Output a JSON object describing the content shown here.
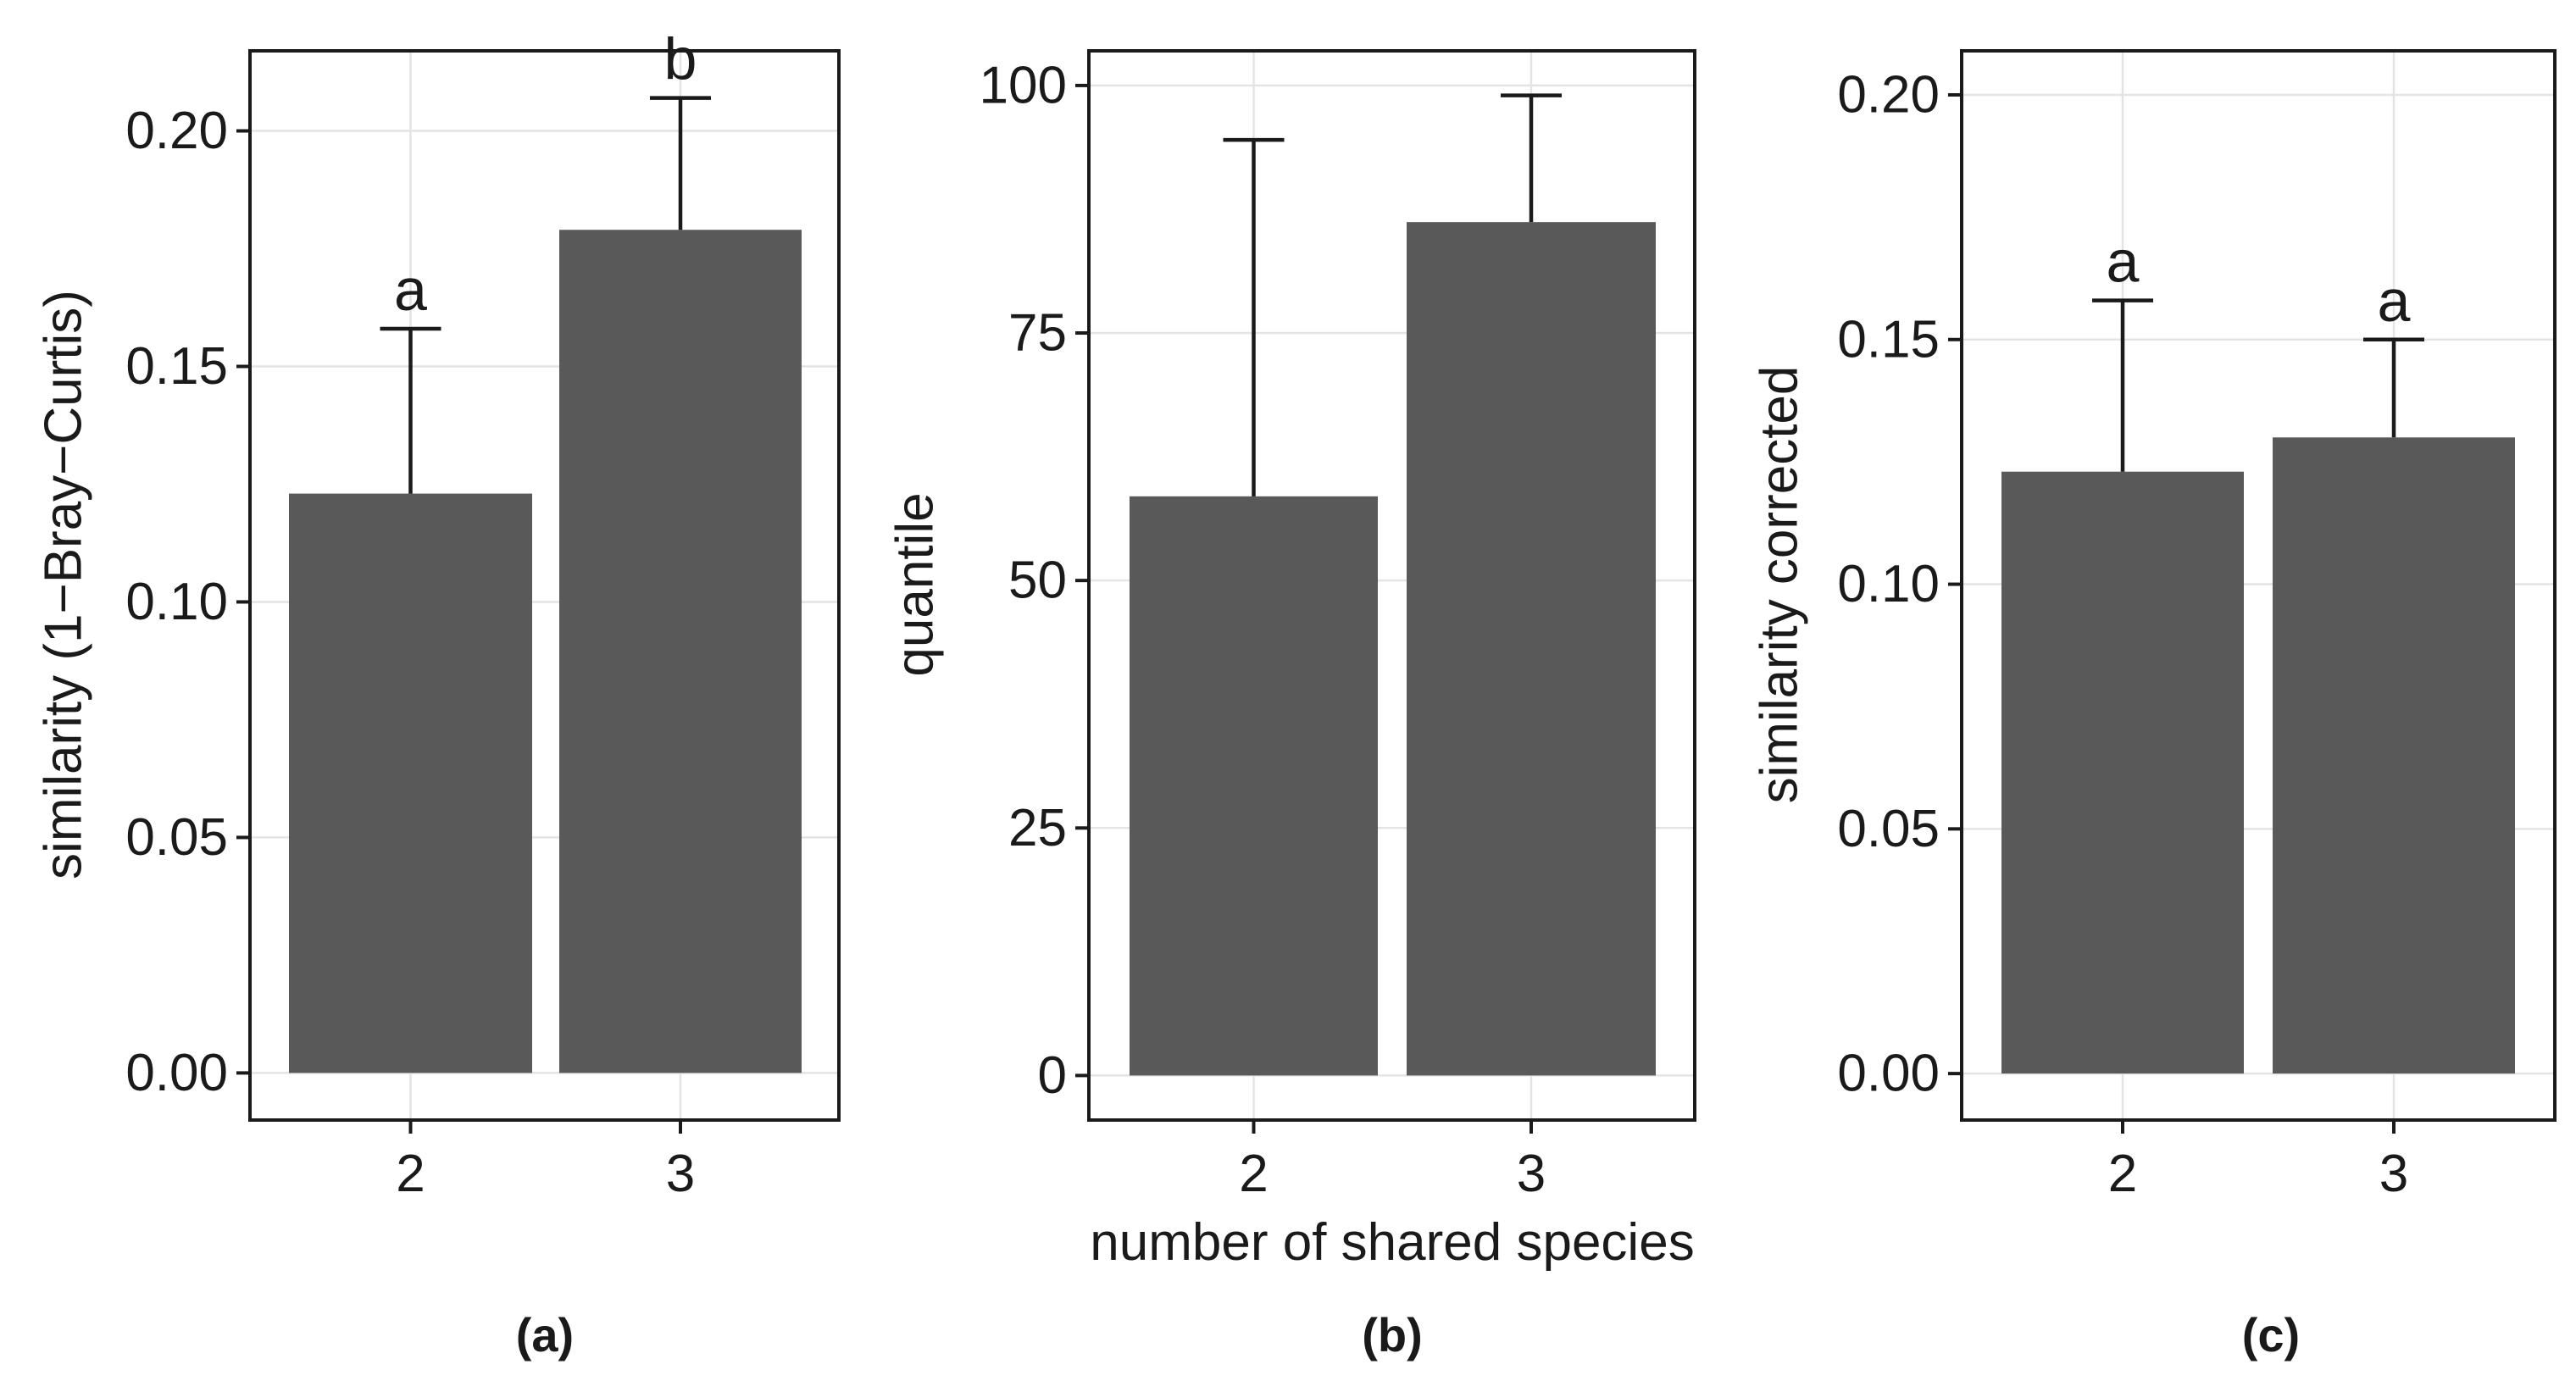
{
  "figure": {
    "shared_xlabel": "number of shared species"
  },
  "chart_data": [
    {
      "type": "bar",
      "panel_label": "(a)",
      "categories": [
        "2",
        "3"
      ],
      "values": [
        0.123,
        0.179
      ],
      "error_upper": [
        0.158,
        0.207
      ],
      "significance_letters": [
        "a",
        "b"
      ],
      "ylabel": "similarity (1−Bray−Curtis)",
      "xlabel": "",
      "ylim": [
        -0.01,
        0.217
      ],
      "yticks": [
        0.0,
        0.05,
        0.1,
        0.15,
        0.2
      ],
      "ytick_labels": [
        "0.00",
        "0.05",
        "0.10",
        "0.15",
        "0.20"
      ],
      "grid": true,
      "bar_color": "#595959"
    },
    {
      "type": "bar",
      "panel_label": "(b)",
      "categories": [
        "2",
        "3"
      ],
      "values": [
        58.5,
        86.2
      ],
      "error_upper": [
        94.5,
        99.0
      ],
      "significance_letters": [],
      "ylabel": "quantile",
      "xlabel": "number of shared species",
      "ylim": [
        -4.5,
        103.5
      ],
      "yticks": [
        0,
        25,
        50,
        75,
        100
      ],
      "ytick_labels": [
        "0",
        "25",
        "50",
        "75",
        "100"
      ],
      "grid": true,
      "bar_color": "#595959"
    },
    {
      "type": "bar",
      "panel_label": "(c)",
      "categories": [
        "2",
        "3"
      ],
      "values": [
        0.123,
        0.13
      ],
      "error_upper": [
        0.158,
        0.15
      ],
      "significance_letters": [
        "a",
        "a"
      ],
      "ylabel": "similarity corrected",
      "xlabel": "",
      "ylim": [
        -0.0095,
        0.209
      ],
      "yticks": [
        0.0,
        0.05,
        0.1,
        0.15,
        0.2
      ],
      "ytick_labels": [
        "0.00",
        "0.05",
        "0.10",
        "0.15",
        "0.20"
      ],
      "grid": true,
      "bar_color": "#595959"
    }
  ]
}
